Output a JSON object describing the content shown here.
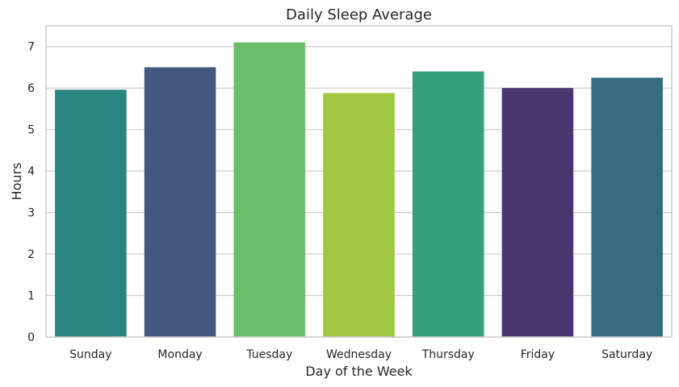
{
  "chart_data": {
    "type": "bar",
    "title": "Daily Sleep Average",
    "xlabel": "Day of the Week",
    "ylabel": "Hours",
    "categories": [
      "Sunday",
      "Monday",
      "Tuesday",
      "Wednesday",
      "Thursday",
      "Friday",
      "Saturday"
    ],
    "values": [
      5.96,
      6.5,
      7.1,
      5.88,
      6.4,
      6.0,
      6.25
    ],
    "colors": [
      "#2a8580",
      "#44577f",
      "#6bbe6a",
      "#a1c642",
      "#389f7c",
      "#4a3671",
      "#376c80"
    ],
    "ylim": [
      0,
      7.5
    ],
    "yticks": [
      0,
      1,
      2,
      3,
      4,
      5,
      6,
      7
    ],
    "grid": "horizontal",
    "background": "#ffffff",
    "gridline_color": "#cccccc"
  }
}
